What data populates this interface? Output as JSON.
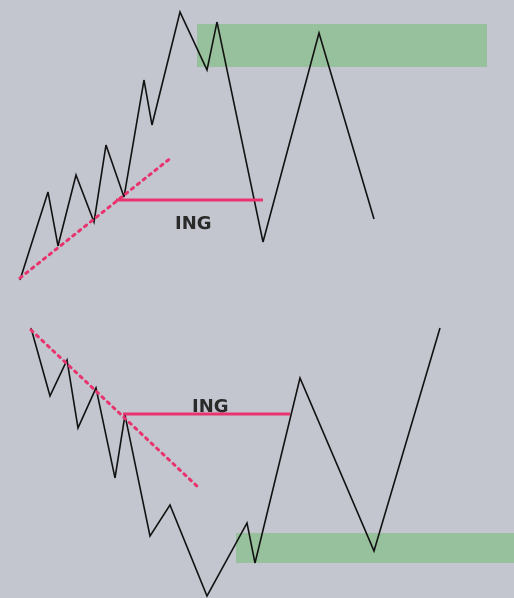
{
  "colors": {
    "background": "#c3c6cf",
    "price_line": "#111111",
    "level_line": "#e8336e",
    "trendline": "#e8336e",
    "zone": "#8fbf93"
  },
  "top_diagram": {
    "level_label": "ING"
  },
  "bottom_diagram": {
    "level_label": "ING"
  }
}
